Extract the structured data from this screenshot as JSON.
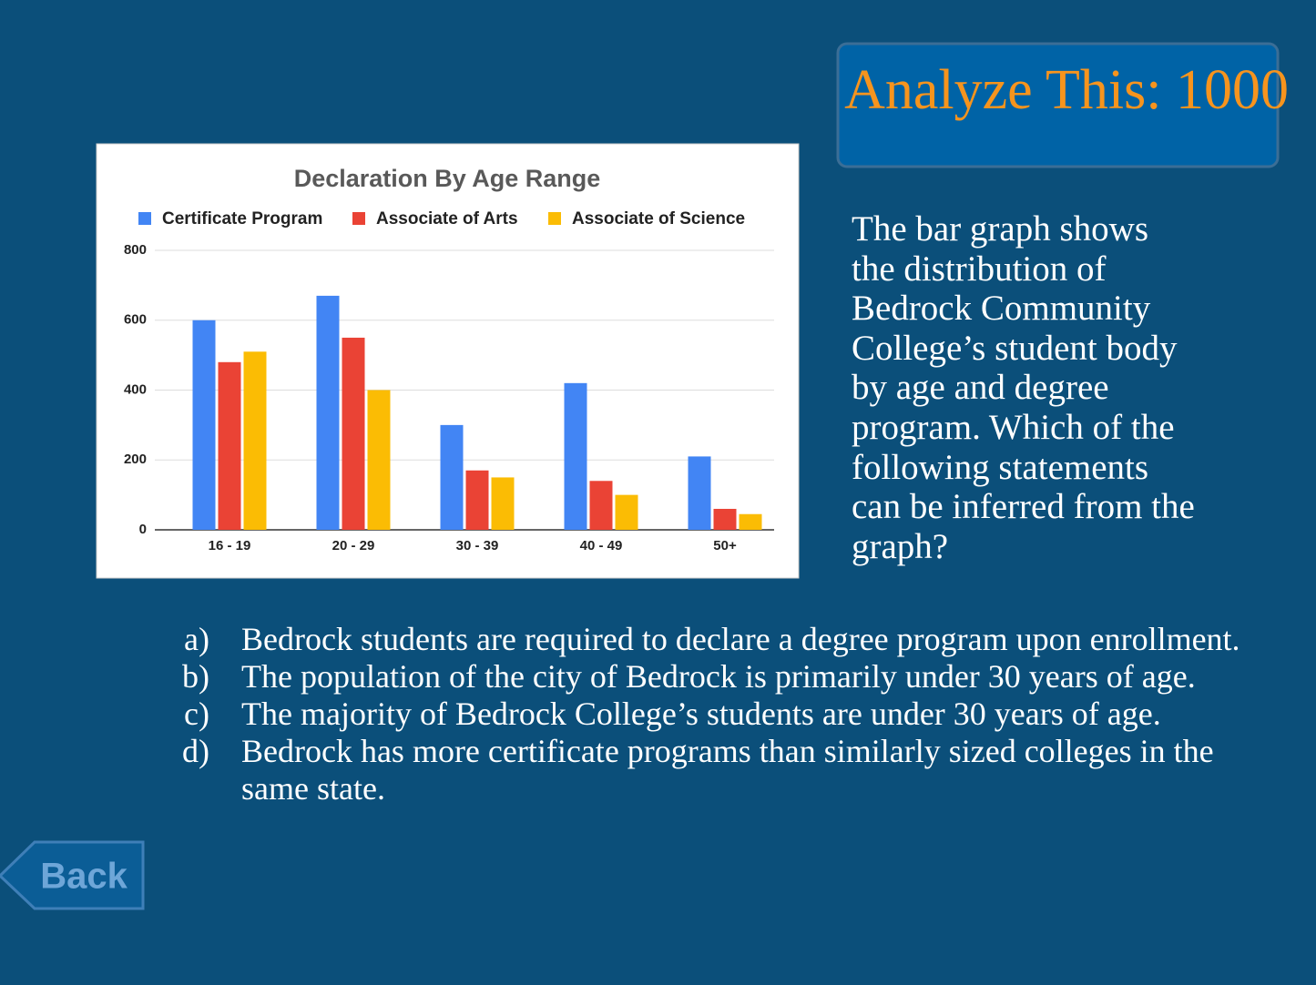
{
  "header": {
    "title": "Analyze This: 1000"
  },
  "chart_data": {
    "type": "bar",
    "title": "Declaration By Age Range",
    "categories": [
      "16 - 19",
      "20 - 29",
      "30 - 39",
      "40 - 49",
      "50+"
    ],
    "series": [
      {
        "name": "Certificate Program",
        "color": "#4285f4",
        "values": [
          600,
          670,
          300,
          420,
          210
        ]
      },
      {
        "name": "Associate of Arts",
        "color": "#ea4335",
        "values": [
          480,
          550,
          170,
          140,
          60
        ]
      },
      {
        "name": "Associate of Science",
        "color": "#fbbc04",
        "values": [
          510,
          400,
          150,
          100,
          45
        ]
      }
    ],
    "ylim": [
      0,
      800
    ],
    "yticks": [
      0,
      200,
      400,
      600,
      800
    ],
    "grid": true,
    "legend": "top"
  },
  "question": {
    "lines": [
      "The bar graph shows",
      "the distribution of",
      "Bedrock Community",
      "College’s student body",
      "by age and degree",
      "program. Which of the",
      "following statements",
      "can be inferred from the",
      "graph?"
    ]
  },
  "options": [
    {
      "label": "a)",
      "text": "Bedrock students are required to declare a degree program upon enrollment."
    },
    {
      "label": "b)",
      "text": "The population of the city of Bedrock is primarily under 30 years of age."
    },
    {
      "label": "c)",
      "text": "The majority of Bedrock College’s students are under 30 years of age."
    },
    {
      "label": "d)",
      "text": "Bedrock has more certificate programs than similarly sized colleges in the same state."
    }
  ],
  "back_button": {
    "label": "Back"
  }
}
